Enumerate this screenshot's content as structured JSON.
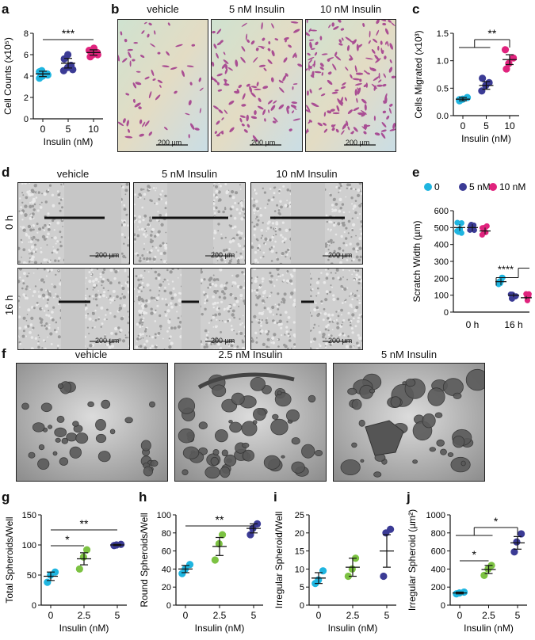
{
  "panels": {
    "a": "a",
    "b": "b",
    "c": "c",
    "d": "d",
    "e": "e",
    "f": "f",
    "g": "g",
    "h": "h",
    "i": "i",
    "j": "j"
  },
  "b_captions": [
    "vehicle",
    "5 nM Insulin",
    "10 nM Insulin"
  ],
  "d_captions": [
    "vehicle",
    "5 nM Insulin",
    "10 nM Insulin"
  ],
  "d_rows": [
    "0 h",
    "16 h"
  ],
  "f_captions": [
    "vehicle",
    "2.5 nM Insulin",
    "5 nM Insulin"
  ],
  "scale_bar": "200 µm",
  "colors": {
    "c0": "#1fb5e0",
    "c5": "#3b3b95",
    "c10": "#e0237d",
    "c25": "#7cc242"
  },
  "chart_data": [
    {
      "id": "a",
      "type": "scatter",
      "ylabel": "Cell Counts (x10⁵)",
      "xlabel": "Insulin  (nM)",
      "categories": [
        "0",
        "5",
        "10"
      ],
      "ylim": [
        0,
        8
      ],
      "yticks": [
        0,
        2,
        4,
        6,
        8
      ],
      "groups": [
        {
          "name": "0",
          "color": "#1fb5e0",
          "mean": 4.2,
          "sem": 0.25,
          "points": [
            3.8,
            4.0,
            4.2,
            4.4,
            4.5,
            4.1
          ]
        },
        {
          "name": "5",
          "color": "#3b3b95",
          "mean": 5.2,
          "sem": 0.45,
          "points": [
            4.5,
            4.8,
            5.0,
            5.6,
            6.0,
            4.6
          ]
        },
        {
          "name": "10",
          "color": "#e0237d",
          "mean": 6.2,
          "sem": 0.25,
          "points": [
            5.8,
            6.0,
            6.2,
            6.4,
            6.6,
            6.0
          ]
        }
      ],
      "significance": [
        {
          "from": 0,
          "to": 2,
          "label": "***"
        }
      ]
    },
    {
      "id": "c",
      "type": "scatter",
      "ylabel": "Cells Migrated (x10³)",
      "xlabel": "Insulin  (nM)",
      "categories": [
        "0",
        "5",
        "10"
      ],
      "ylim": [
        0,
        1.5
      ],
      "yticks": [
        0.0,
        0.5,
        1.0,
        1.5
      ],
      "groups": [
        {
          "name": "0",
          "color": "#1fb5e0",
          "mean": 0.3,
          "sem": 0.03,
          "points": [
            0.27,
            0.3,
            0.33,
            0.29
          ]
        },
        {
          "name": "5",
          "color": "#3b3b95",
          "mean": 0.55,
          "sem": 0.07,
          "points": [
            0.45,
            0.55,
            0.6,
            0.68
          ]
        },
        {
          "name": "10",
          "color": "#e0237d",
          "mean": 1.02,
          "sem": 0.09,
          "points": [
            0.85,
            0.95,
            1.05,
            1.2
          ]
        }
      ],
      "significance": [
        {
          "from": 0,
          "to": 2,
          "label": "**",
          "grouped": true
        }
      ]
    },
    {
      "id": "e",
      "type": "scatter",
      "ylabel": "Scratch Width (µm)",
      "categories": [
        "0 h",
        "16 h"
      ],
      "ylim": [
        0,
        600
      ],
      "yticks": [
        0,
        100,
        200,
        300,
        400,
        500,
        600
      ],
      "series": [
        {
          "name": "0",
          "color": "#1fb5e0",
          "means": [
            500,
            180
          ],
          "sem": [
            20,
            20
          ]
        },
        {
          "name": "5 nM",
          "color": "#3b3b95",
          "means": [
            500,
            100
          ],
          "sem": [
            20,
            12
          ]
        },
        {
          "name": "10 nM",
          "color": "#e0237d",
          "means": [
            480,
            85
          ],
          "sem": [
            20,
            10
          ]
        }
      ],
      "legend": [
        "0",
        "5 nM",
        "10 nM"
      ],
      "significance": [
        {
          "label": "****"
        }
      ]
    },
    {
      "id": "g",
      "type": "scatter",
      "ylabel": "Total Spheroids/Well",
      "xlabel": "Insulin (nM)",
      "categories": [
        "0",
        "2.5",
        "5"
      ],
      "ylim": [
        0,
        150
      ],
      "yticks": [
        0,
        50,
        100,
        150
      ],
      "groups": [
        {
          "name": "0",
          "color": "#1fb5e0",
          "mean": 48,
          "sem": 7,
          "points": [
            38,
            50,
            55
          ]
        },
        {
          "name": "2.5",
          "color": "#7cc242",
          "mean": 77,
          "sem": 10,
          "points": [
            60,
            80,
            92
          ]
        },
        {
          "name": "5",
          "color": "#3b3b95",
          "mean": 100,
          "sem": 1,
          "points": [
            99,
            100,
            101
          ]
        }
      ],
      "significance": [
        {
          "from": 0,
          "to": 1,
          "label": "*"
        },
        {
          "from": 0,
          "to": 2,
          "label": "**"
        }
      ]
    },
    {
      "id": "h",
      "type": "scatter",
      "ylabel": "Round Spheroids/Well",
      "xlabel": "Insulin (nM)",
      "categories": [
        "0",
        "2.5",
        "5"
      ],
      "ylim": [
        0,
        100
      ],
      "yticks": [
        0,
        20,
        40,
        60,
        80,
        100
      ],
      "groups": [
        {
          "name": "0",
          "color": "#1fb5e0",
          "mean": 40,
          "sem": 4,
          "points": [
            35,
            40,
            45
          ]
        },
        {
          "name": "2.5",
          "color": "#7cc242",
          "mean": 65,
          "sem": 10,
          "points": [
            50,
            68,
            78
          ]
        },
        {
          "name": "5",
          "color": "#3b3b95",
          "mean": 85,
          "sem": 5,
          "points": [
            78,
            85,
            90
          ]
        }
      ],
      "significance": [
        {
          "from": 0,
          "to": 2,
          "label": "**"
        }
      ]
    },
    {
      "id": "i",
      "type": "scatter",
      "ylabel": "Irregular Spheroid/Well",
      "xlabel": "Insulin (nM)",
      "categories": [
        "0",
        "2.5",
        "5"
      ],
      "ylim": [
        0,
        25
      ],
      "yticks": [
        0,
        5,
        10,
        15,
        20,
        25
      ],
      "groups": [
        {
          "name": "0",
          "color": "#1fb5e0",
          "mean": 7.5,
          "sem": 1.5,
          "points": [
            6,
            7,
            9.5
          ]
        },
        {
          "name": "2.5",
          "color": "#7cc242",
          "mean": 10.5,
          "sem": 2.5,
          "points": [
            8,
            10,
            13
          ]
        },
        {
          "name": "5",
          "color": "#3b3b95",
          "mean": 15,
          "sem": 4.5,
          "points": [
            8,
            20,
            21
          ]
        }
      ],
      "significance": []
    },
    {
      "id": "j",
      "type": "scatter",
      "ylabel": "Irregular Spheroid (µm²)",
      "xlabel": "Insulin (nM)",
      "categories": [
        "0",
        "2.5",
        "5"
      ],
      "ylim": [
        0,
        1000
      ],
      "yticks": [
        0,
        200,
        400,
        600,
        800,
        1000
      ],
      "groups": [
        {
          "name": "0",
          "color": "#1fb5e0",
          "mean": 135,
          "sem": 10,
          "points": [
            125,
            135,
            145
          ]
        },
        {
          "name": "2.5",
          "color": "#7cc242",
          "mean": 395,
          "sem": 45,
          "points": [
            330,
            400,
            440
          ]
        },
        {
          "name": "5",
          "color": "#3b3b95",
          "mean": 690,
          "sem": 70,
          "points": [
            590,
            700,
            790
          ]
        }
      ],
      "significance": [
        {
          "from": 0,
          "to": 1,
          "label": "*"
        },
        {
          "from": 0,
          "to": 2,
          "label": "*",
          "grouped": true
        }
      ]
    }
  ]
}
